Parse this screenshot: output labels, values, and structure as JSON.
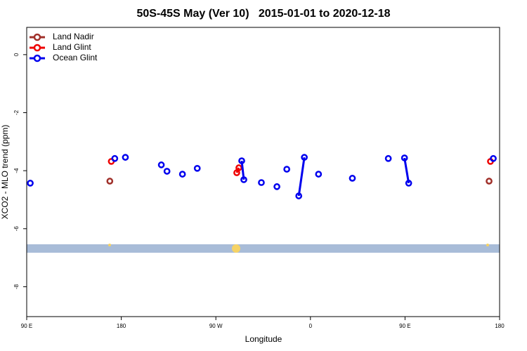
{
  "chart_data": {
    "type": "line",
    "title": "50S-45S May (Ver 10)   2015-01-01 to 2020-12-18",
    "xlabel": "Longitude",
    "ylabel": "XCO2 - MLO trend (ppm)",
    "xlim": [
      90,
      540
    ],
    "ylim": [
      -9.03,
      0.94
    ],
    "xticks": [
      {
        "value": 90,
        "label": "90 E"
      },
      {
        "value": 180,
        "label": "180"
      },
      {
        "value": 270,
        "label": "90 W"
      },
      {
        "value": 360,
        "label": "0"
      },
      {
        "value": 450,
        "label": "90 E"
      },
      {
        "value": 540,
        "label": "180"
      }
    ],
    "yticks": [
      0,
      -2,
      -4,
      -6,
      -8
    ],
    "legend": "top-left",
    "series": [
      {
        "name": "Land Nadir",
        "color": "#a0302a",
        "x": [
          169.1,
          null,
          530.0
        ],
        "values": [
          -4.36,
          null,
          -4.36
        ]
      },
      {
        "name": "Land Glint",
        "color": "#ee0000",
        "x": [
          170.5,
          null,
          289.9,
          291.9,
          null,
          531.3
        ],
        "values": [
          -3.68,
          null,
          -4.07,
          -3.9,
          null,
          -3.68
        ]
      },
      {
        "name": "Ocean Glint",
        "color": "#0000ee",
        "x": [
          93.4,
          null,
          173.8,
          null,
          183.9,
          null,
          218.1,
          null,
          223.5,
          null,
          238.2,
          null,
          252.3,
          null,
          294.6,
          296.6,
          null,
          313.3,
          null,
          328.1,
          null,
          337.5,
          null,
          348.9,
          354.2,
          null,
          367.7,
          null,
          399.9,
          null,
          434.1,
          null,
          449.5,
          453.5,
          null,
          534.0
        ],
        "values": [
          -4.43,
          null,
          -3.58,
          null,
          -3.54,
          null,
          -3.8,
          null,
          -4.02,
          null,
          -4.12,
          null,
          -3.92,
          null,
          -3.66,
          -4.31,
          null,
          -4.41,
          null,
          -4.55,
          null,
          -3.95,
          null,
          -4.87,
          -3.54,
          null,
          -4.12,
          null,
          -4.26,
          null,
          -3.58,
          null,
          -3.56,
          -4.43,
          null,
          -3.58
        ]
      }
    ]
  }
}
